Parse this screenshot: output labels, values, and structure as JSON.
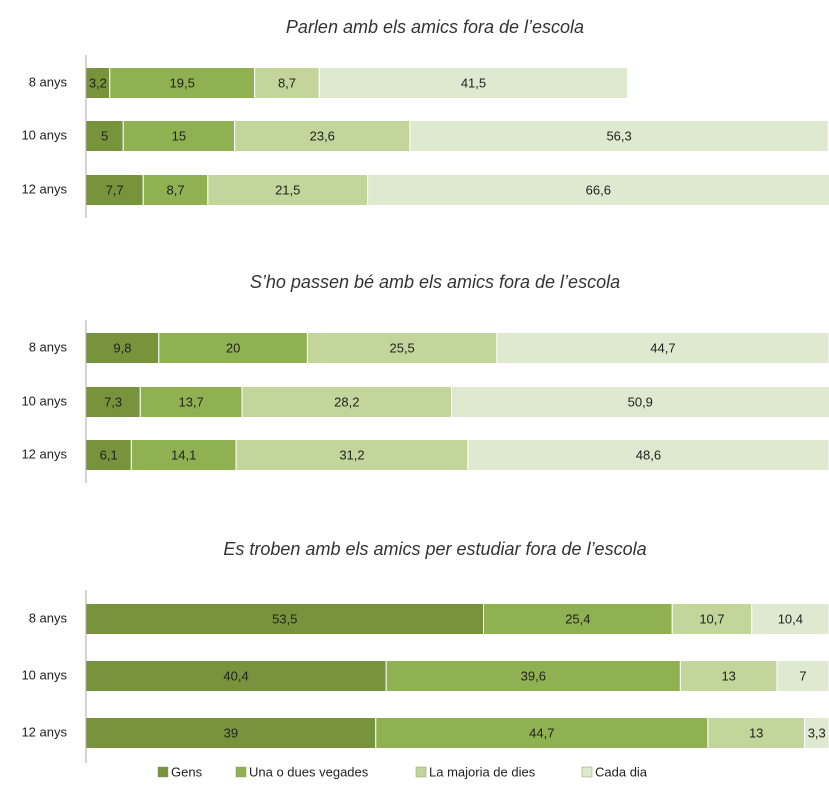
{
  "legend": [
    {
      "name": "Gens",
      "color": "#77933c"
    },
    {
      "name": "Una o dues vegades",
      "color": "#8fb151"
    },
    {
      "name": "La majoria de dies",
      "color": "#c2d69b"
    },
    {
      "name": "Cada dia",
      "color": "#dfe9cf"
    }
  ],
  "chart_data": [
    {
      "type": "bar",
      "orientation": "horizontal",
      "title": "Parlen amb els amics fora de l’escola",
      "categories": [
        "8 anys",
        "10 anys",
        "12 anys"
      ],
      "xlim": [
        0,
        100
      ],
      "series": [
        {
          "values": [
            3.2,
            5,
            7.7
          ],
          "value_labels": [
            "3,2",
            "5",
            "7,7"
          ]
        },
        {
          "values": [
            19.5,
            15,
            8.7
          ],
          "value_labels": [
            "19,5",
            "15",
            "8,7"
          ]
        },
        {
          "values": [
            8.7,
            23.6,
            21.5
          ],
          "value_labels": [
            "8,7",
            "23,6",
            "21,5"
          ]
        },
        {
          "values": [
            41.5,
            56.3,
            66.6
          ],
          "value_labels": [
            "41,5",
            "56,3",
            "66,6"
          ]
        }
      ]
    },
    {
      "type": "bar",
      "orientation": "horizontal",
      "title": "S’ho passen bé amb els amics fora de l’escola",
      "categories": [
        "8 anys",
        "10 anys",
        "12 anys"
      ],
      "xlim": [
        0,
        100
      ],
      "series": [
        {
          "values": [
            9.8,
            7.3,
            6.1
          ],
          "value_labels": [
            "9,8",
            "7,3",
            "6,1"
          ]
        },
        {
          "values": [
            20,
            13.7,
            14.1
          ],
          "value_labels": [
            "20",
            "13,7",
            "14,1"
          ]
        },
        {
          "values": [
            25.5,
            28.2,
            31.2
          ],
          "value_labels": [
            "25,5",
            "28,2",
            "31,2"
          ]
        },
        {
          "values": [
            44.7,
            50.9,
            48.6
          ],
          "value_labels": [
            "44,7",
            "50,9",
            "48,6"
          ]
        }
      ]
    },
    {
      "type": "bar",
      "orientation": "horizontal",
      "title": "Es troben amb els amics per estudiar fora de l’escola",
      "categories": [
        "8 anys",
        "10 anys",
        "12 anys"
      ],
      "xlim": [
        0,
        100
      ],
      "series": [
        {
          "values": [
            53.5,
            40.4,
            39
          ],
          "value_labels": [
            "53,5",
            "40,4",
            "39"
          ]
        },
        {
          "values": [
            25.4,
            39.6,
            44.7
          ],
          "value_labels": [
            "25,4",
            "39,6",
            "44,7"
          ]
        },
        {
          "values": [
            10.7,
            13,
            13
          ],
          "value_labels": [
            "10,7",
            "13",
            "13"
          ]
        },
        {
          "values": [
            10.4,
            7,
            3.3
          ],
          "value_labels": [
            "10,4",
            "7",
            "3,3"
          ]
        }
      ]
    }
  ]
}
